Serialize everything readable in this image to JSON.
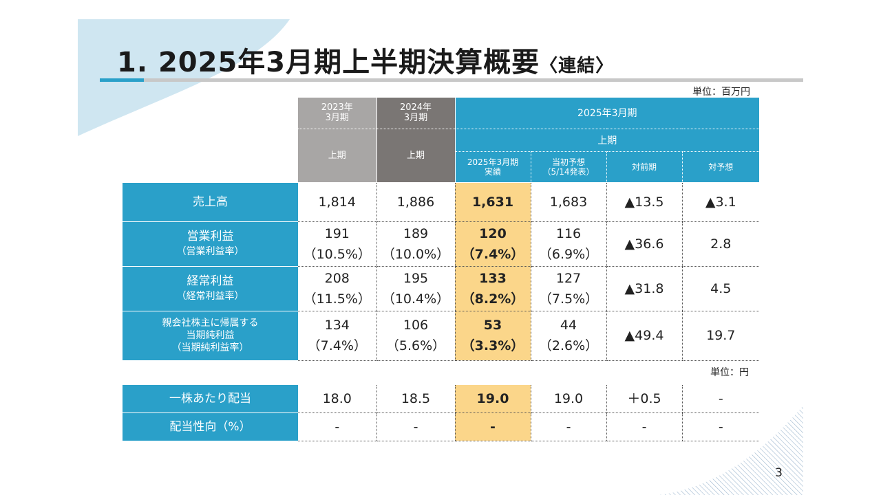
{
  "title": {
    "main": "1.  2025年3月期上半期決算概要",
    "sub": "〈連結〉"
  },
  "unit_main": "単位：百万円",
  "unit_div": "単位：円",
  "header": {
    "col_2023": "2023年\n3月期",
    "col_2024": "2024年\n3月期",
    "col_2025": "2025年3月期",
    "half_2023": "上期",
    "half_2024": "上期",
    "half_2025": "上期",
    "sub_actual": "2025年3月期\n実績",
    "sub_forecast": "当初予想\n（5/14発表）",
    "sub_yoy": "対前期",
    "sub_vs_forecast": "対予想"
  },
  "rows": [
    {
      "label": "売上高",
      "values": [
        "1,814",
        "1,886",
        "1,631",
        "1,683",
        "▲13.5",
        "▲3.1"
      ]
    },
    {
      "label": "営業利益",
      "label_sub": "（営業利益率）",
      "values": [
        "191\n（10.5%）",
        "189\n（10.0%）",
        "120\n（7.4%）",
        "116\n（6.9%）",
        "▲36.6",
        "2.8"
      ]
    },
    {
      "label": "経常利益",
      "label_sub": "（経常利益率）",
      "values": [
        "208\n（11.5%）",
        "195\n（10.4%）",
        "133\n（8.2%）",
        "127\n（7.5%）",
        "▲31.8",
        "4.5"
      ]
    },
    {
      "label": "親会社株主に帰属する\n当期純利益",
      "label_sub": "（当期純利益率）",
      "values": [
        "134\n（7.4%）",
        "106\n（5.6%）",
        "53\n（3.3%）",
        "44\n（2.6%）",
        "▲49.4",
        "19.7"
      ]
    }
  ],
  "div_rows": [
    {
      "label": "一株あたり配当",
      "values": [
        "18.0",
        "18.5",
        "19.0",
        "19.0",
        "＋0.5",
        "-"
      ]
    },
    {
      "label": "配当性向（%）",
      "values": [
        "-",
        "-",
        "-",
        "-",
        "-",
        "-"
      ]
    }
  ],
  "colors": {
    "accent_blue": "#2aa0c9",
    "gray_2023": "#a8a6a5",
    "gray_2024": "#7a7674",
    "highlight": "#fbd68a"
  },
  "page_number": "3"
}
